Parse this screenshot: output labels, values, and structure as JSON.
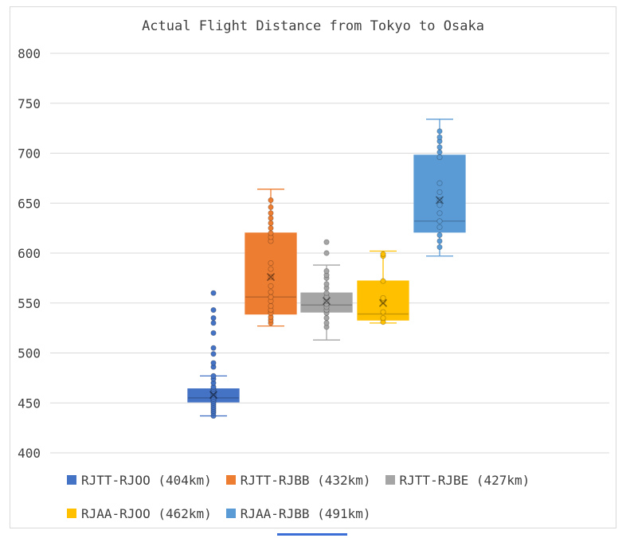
{
  "chart_data": {
    "type": "box",
    "title": "Actual Flight Distance from Tokyo to Osaka",
    "xlabel": "",
    "ylabel": "",
    "ylim": [
      400,
      800
    ],
    "yticks": [
      400,
      450,
      500,
      550,
      600,
      650,
      700,
      750,
      800
    ],
    "grid": true,
    "legend_position": "bottom",
    "series": [
      {
        "name": "RJTT-RJOO (404km)",
        "color": "#4472c4",
        "min": 437,
        "q1": 451,
        "median": 455,
        "q3": 464,
        "max": 477,
        "mean": 458,
        "points": [
          437,
          440,
          442,
          444,
          446,
          448,
          450,
          452,
          454,
          456,
          458,
          460,
          462,
          464,
          466,
          470,
          474,
          477,
          486,
          490,
          499,
          505,
          520,
          530,
          535,
          543,
          560
        ]
      },
      {
        "name": "RJTT-RJBB (432km)",
        "color": "#ed7d31",
        "min": 527,
        "q1": 539,
        "median": 556,
        "q3": 620,
        "max": 664,
        "mean": 576,
        "points": [
          530,
          533,
          536,
          540,
          543,
          547,
          552,
          556,
          561,
          567,
          576,
          584,
          590,
          612,
          616,
          620,
          625,
          630,
          635,
          640,
          646,
          653
        ]
      },
      {
        "name": "RJTT-RJBE (427km)",
        "color": "#a5a5a5",
        "min": 513,
        "q1": 541,
        "median": 548,
        "q3": 560,
        "max": 588,
        "mean": 552,
        "points": [
          526,
          530,
          535,
          540,
          543,
          546,
          549,
          552,
          556,
          560,
          565,
          569,
          575,
          578,
          582,
          600,
          611
        ]
      },
      {
        "name": "RJAA-RJOO (462km)",
        "color": "#ffc000",
        "min": 530,
        "q1": 533,
        "median": 539,
        "q3": 572,
        "max": 602,
        "mean": 550,
        "points": [
          531,
          535,
          541,
          552,
          555,
          572,
          597,
          599
        ]
      },
      {
        "name": "RJAA-RJBB (491km)",
        "color": "#5b9bd5",
        "min": 597,
        "q1": 621,
        "median": 632,
        "q3": 698,
        "max": 734,
        "mean": 653,
        "points": [
          606,
          612,
          618,
          626,
          632,
          640,
          648,
          653,
          661,
          670,
          696,
          701,
          706,
          712,
          716,
          722
        ]
      }
    ]
  }
}
